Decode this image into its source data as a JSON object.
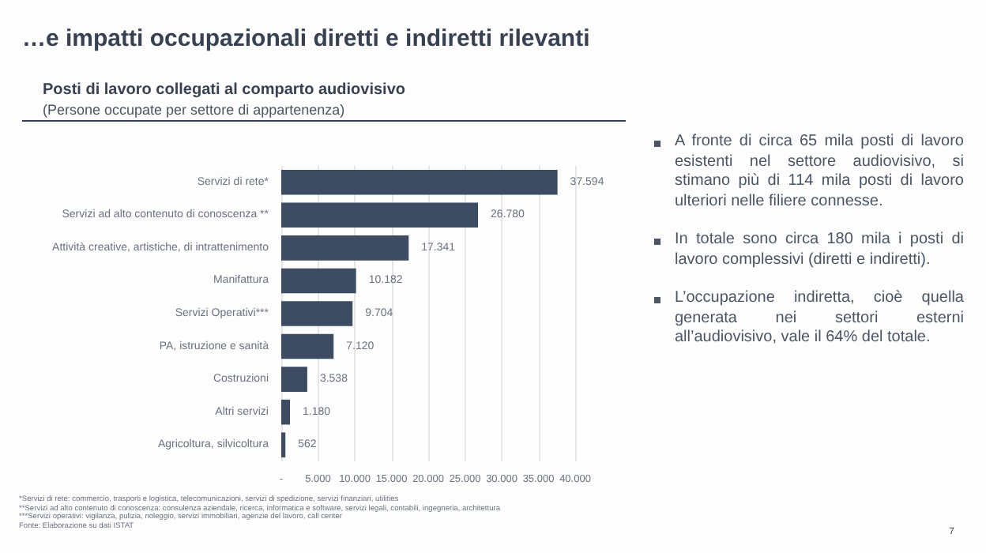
{
  "chart_data": {
    "type": "bar",
    "orientation": "horizontal",
    "title": "Posti di lavoro collegati al comparto audiovisivo",
    "subtitle": "(Persone occupate per settore di appartenenza)",
    "categories": [
      "Servizi di rete*",
      "Servizi ad alto contenuto di conoscenza **",
      "Attività creative, artistiche, di intrattenimento",
      "Manifattura",
      "Servizi Operativi***",
      "PA, istruzione e sanità",
      "Costruzioni",
      "Altri servizi",
      "Agricoltura, silvicoltura"
    ],
    "values": [
      37594,
      26780,
      17341,
      10182,
      9704,
      7120,
      3538,
      1180,
      562
    ],
    "value_labels": [
      "37.594",
      "26.780",
      "17.341",
      "10.182",
      "9.704",
      "7.120",
      "3.538",
      "1.180",
      "562"
    ],
    "color": "#3d4c63",
    "xlim": [
      0,
      40000
    ],
    "xticks": [
      {
        "value": 0,
        "label": "-"
      },
      {
        "value": 5000,
        "label": "5.000"
      },
      {
        "value": 10000,
        "label": "10.000"
      },
      {
        "value": 15000,
        "label": "15.000"
      },
      {
        "value": 20000,
        "label": "20.000"
      },
      {
        "value": 25000,
        "label": "25.000"
      },
      {
        "value": 30000,
        "label": "30.000"
      },
      {
        "value": 35000,
        "label": "35.000"
      },
      {
        "value": 40000,
        "label": "40.000"
      }
    ],
    "grid": "x",
    "annotations": [
      "…e impatti occupazionali diretti e indiretti rilevanti",
      "A fronte di circa 65 mila posti di lavoro esistenti nel settore audiovisivo, si stimano più di 114 mila posti di lavoro ulteriori nelle filiere connesse.",
      "In totale sono circa 180 mila i posti di lavoro complessivi (diretti e indiretti).",
      "L’occupazione indiretta, cioè quella generata nei settori esterni all’audiovisivo, vale il 64% del totale.",
      "*Servizi di rete: commercio, trasporti e logistica, telecomunicazioni, servizi di spedizione, servizi finanziari, utilities",
      "**Servizi ad alto contenuto di conoscenza: consulenza aziendale, ricerca, informatica e software, servizi legali, contabili, ingegneria, architettura",
      "***Servizi operativi: vigilanza, pulizia, noleggio, servizi immobiliari, agenzie del lavoro, call center",
      "Fonte: Elaborazione su dati ISTAT",
      "7"
    ]
  }
}
